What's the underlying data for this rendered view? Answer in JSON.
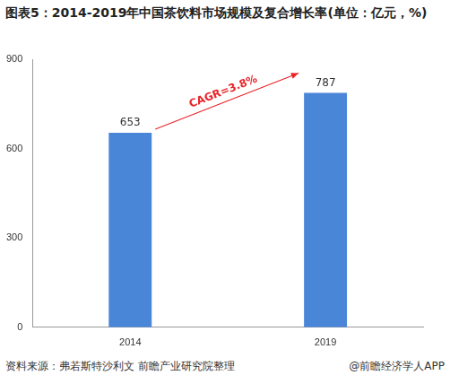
{
  "chart_data": {
    "type": "bar",
    "title": "图表5：2014-2019年中国茶饮料市场规模及复合增长率(单位：亿元，%)",
    "categories": [
      "2014",
      "2019"
    ],
    "values": [
      653,
      787
    ],
    "color": "#4a86d8",
    "ylim": [
      0,
      900
    ],
    "yticks": [
      0,
      300,
      600,
      900
    ],
    "grid": false,
    "data_labels": true,
    "annotation": "CAGR=3.8%",
    "source": "资料来源：弗若斯特沙利文 前瞻产业研究院整理",
    "credit": "@前瞻经济学人APP"
  }
}
